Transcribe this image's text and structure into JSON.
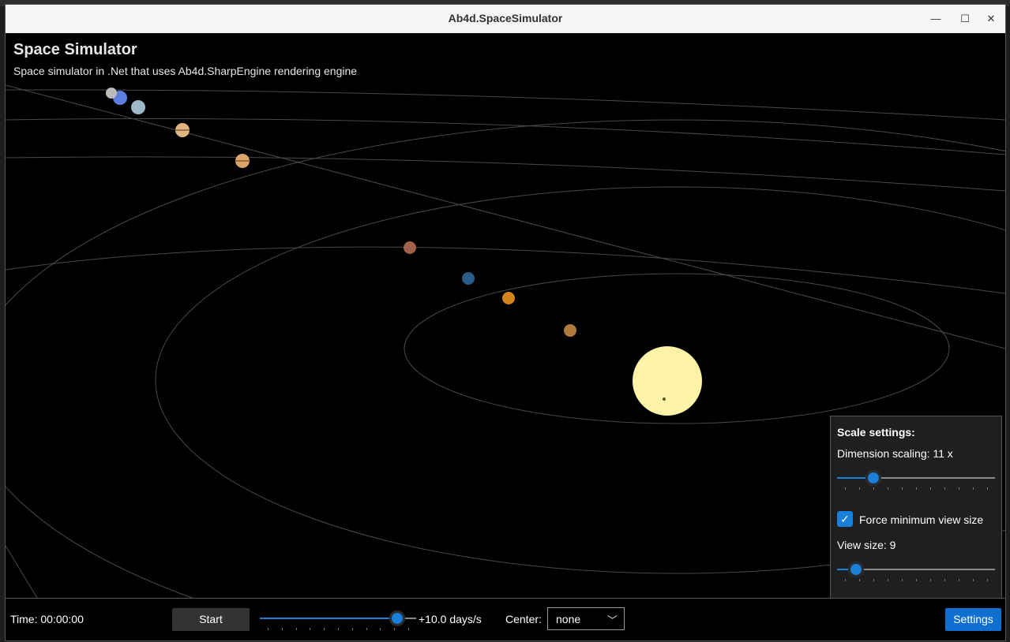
{
  "window": {
    "title": "Ab4d.SpaceSimulator",
    "minimize_glyph": "—",
    "maximize_glyph": "☐",
    "close_glyph": "✕"
  },
  "app": {
    "title": "Space Simulator",
    "subtitle": "Space simulator in .Net that uses Ab4d.SharpEngine rendering engine"
  },
  "scale_settings": {
    "header": "Scale settings:",
    "dimension_scaling_label": "Dimension scaling: 11 x",
    "dimension_scaling_value": 0.23,
    "force_min_view_checked": true,
    "force_min_view_label": "Force minimum view size",
    "view_size_label": "View size: 9",
    "view_size_value": 0.12
  },
  "bottom": {
    "time_label": "Time: 00:00:00",
    "start_label": "Start",
    "speed_value": 0.88,
    "speed_label": "+10.0 days/s",
    "center_label": "Center:",
    "center_value": "none",
    "settings_label": "Settings"
  },
  "colors": {
    "accent": "#1a7fd6",
    "sun": "#fff3a8",
    "orbit": "#555555"
  }
}
